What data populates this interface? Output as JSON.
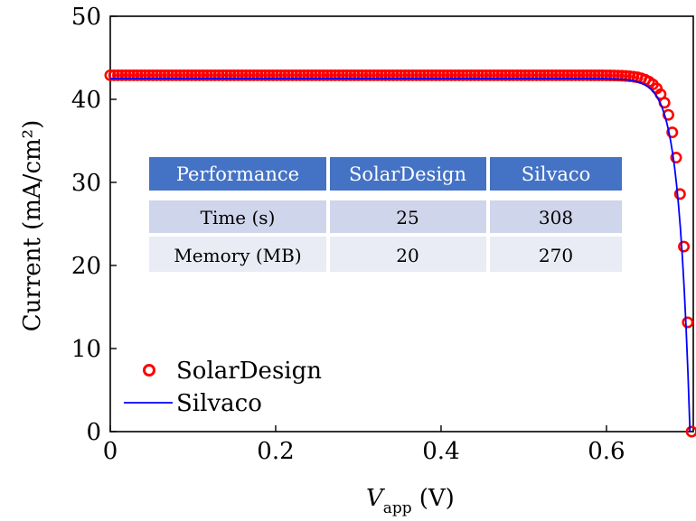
{
  "chart_data": {
    "type": "scatter",
    "xlabel_main": "V",
    "xlabel_sub": "app",
    "xlabel_unit": "(V)",
    "ylabel": "Current (mA/cm²)",
    "xlim": [
      0,
      0.705
    ],
    "ylim": [
      0,
      50
    ],
    "xticks": [
      0,
      0.2,
      0.4,
      0.6
    ],
    "xtick_labels": [
      "0",
      "0.2",
      "0.4",
      "0.6"
    ],
    "yticks": [
      0,
      10,
      20,
      30,
      40,
      50
    ],
    "ytick_labels": [
      "0",
      "10",
      "20",
      "30",
      "40",
      "50"
    ],
    "series": [
      {
        "name": "SolarDesign",
        "style": "circles",
        "color": "#ff0000",
        "params": {
          "isc": 42.9,
          "voc": 0.703,
          "vt": 0.0128
        }
      },
      {
        "name": "Silvaco",
        "style": "line",
        "color": "#0000ff",
        "params": {
          "isc": 42.5,
          "voc": 0.701,
          "vt": 0.0135
        }
      }
    ],
    "legend": {
      "placement": "bottom-left",
      "entries": [
        "SolarDesign",
        "Silvaco"
      ]
    },
    "table": {
      "headers": [
        "Performance",
        "SolarDesign",
        "Silvaco"
      ],
      "rows": [
        [
          "Time (s)",
          "25",
          "308"
        ],
        [
          "Memory (MB)",
          "20",
          "270"
        ]
      ]
    }
  },
  "colors": {
    "header": "#4472c4",
    "row1": "#cfd5ea",
    "row2": "#e9ebf5",
    "marker": "#ff0000",
    "line": "#0000ff"
  }
}
